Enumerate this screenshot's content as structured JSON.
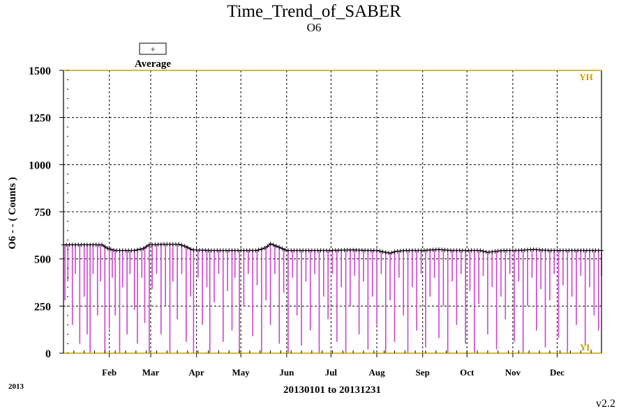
{
  "chart_data": {
    "type": "line",
    "title": "Time_Trend_of_SABER",
    "subtitle": "O6",
    "ylabel": "O6  - - ( Counts )",
    "xlabel": "20130101 to 20131231",
    "year_label": "2013",
    "version": "v2.2",
    "ylim": [
      0,
      1500
    ],
    "yticks": [
      0,
      250,
      500,
      750,
      1000,
      1250,
      1500
    ],
    "ytick_labels": [
      "0",
      "250",
      "500",
      "750",
      "1000",
      "1250",
      "1500"
    ],
    "x_range": [
      "2013-01-01",
      "2013-12-31"
    ],
    "month_ticks": [
      {
        "date": "2013-02-01",
        "label": "Feb"
      },
      {
        "date": "2013-03-01",
        "label": "Mar"
      },
      {
        "date": "2013-04-01",
        "label": "Apr"
      },
      {
        "date": "2013-05-01",
        "label": "May"
      },
      {
        "date": "2013-06-01",
        "label": "Jun"
      },
      {
        "date": "2013-07-01",
        "label": "Jul"
      },
      {
        "date": "2013-08-01",
        "label": "Aug"
      },
      {
        "date": "2013-09-01",
        "label": "Sep"
      },
      {
        "date": "2013-10-01",
        "label": "Oct"
      },
      {
        "date": "2013-11-01",
        "label": "Nov"
      },
      {
        "date": "2013-12-01",
        "label": "Dec"
      }
    ],
    "limit_high": {
      "label": "YH",
      "value": 1500,
      "color": "#c8a000"
    },
    "limit_low": {
      "label": "YL",
      "value": 0,
      "color": "#c8a000"
    },
    "grid": true,
    "legend": {
      "position": "top-left",
      "entries": [
        {
          "symbol": "+",
          "label": "Average"
        }
      ]
    },
    "average_series": {
      "name": "Average",
      "color": "#000000",
      "points": [
        [
          "2013-01-01",
          575
        ],
        [
          "2013-01-10",
          575
        ],
        [
          "2013-01-20",
          575
        ],
        [
          "2013-01-27",
          575
        ],
        [
          "2013-01-31",
          555
        ],
        [
          "2013-02-05",
          545
        ],
        [
          "2013-02-12",
          545
        ],
        [
          "2013-02-18",
          545
        ],
        [
          "2013-02-24",
          555
        ],
        [
          "2013-02-28",
          575
        ],
        [
          "2013-03-10",
          578
        ],
        [
          "2013-03-20",
          578
        ],
        [
          "2013-03-25",
          565
        ],
        [
          "2013-03-29",
          548
        ],
        [
          "2013-04-10",
          545
        ],
        [
          "2013-04-25",
          545
        ],
        [
          "2013-05-05",
          545
        ],
        [
          "2013-05-12",
          545
        ],
        [
          "2013-05-18",
          560
        ],
        [
          "2013-05-21",
          580
        ],
        [
          "2013-05-26",
          565
        ],
        [
          "2013-06-01",
          545
        ],
        [
          "2013-06-15",
          545
        ],
        [
          "2013-07-01",
          545
        ],
        [
          "2013-07-15",
          548
        ],
        [
          "2013-07-25",
          545
        ],
        [
          "2013-08-01",
          545
        ],
        [
          "2013-08-05",
          538
        ],
        [
          "2013-08-10",
          530
        ],
        [
          "2013-08-14",
          540
        ],
        [
          "2013-08-20",
          545
        ],
        [
          "2013-09-01",
          545
        ],
        [
          "2013-09-12",
          550
        ],
        [
          "2013-09-20",
          545
        ],
        [
          "2013-10-01",
          545
        ],
        [
          "2013-10-10",
          545
        ],
        [
          "2013-10-15",
          535
        ],
        [
          "2013-10-20",
          540
        ],
        [
          "2013-10-25",
          545
        ],
        [
          "2013-11-05",
          545
        ],
        [
          "2013-11-15",
          550
        ],
        [
          "2013-11-25",
          545
        ],
        [
          "2013-12-10",
          545
        ],
        [
          "2013-12-31",
          545
        ]
      ]
    },
    "min_series": {
      "name": "",
      "color": "#cc44cc",
      "points": [
        [
          "2013-01-02",
          280
        ],
        [
          "2013-01-04",
          380
        ],
        [
          "2013-01-07",
          150
        ],
        [
          "2013-01-09",
          420
        ],
        [
          "2013-01-12",
          50
        ],
        [
          "2013-01-15",
          300
        ],
        [
          "2013-01-17",
          100
        ],
        [
          "2013-01-19",
          0
        ],
        [
          "2013-01-21",
          420
        ],
        [
          "2013-01-24",
          200
        ],
        [
          "2013-01-26",
          380
        ],
        [
          "2013-01-29",
          0
        ],
        [
          "2013-02-01",
          130
        ],
        [
          "2013-02-03",
          400
        ],
        [
          "2013-02-05",
          200
        ],
        [
          "2013-02-08",
          0
        ],
        [
          "2013-02-10",
          350
        ],
        [
          "2013-02-13",
          100
        ],
        [
          "2013-02-15",
          420
        ],
        [
          "2013-02-18",
          230
        ],
        [
          "2013-02-20",
          50
        ],
        [
          "2013-02-23",
          400
        ],
        [
          "2013-02-25",
          160
        ],
        [
          "2013-02-28",
          0
        ],
        [
          "2013-03-02",
          340
        ],
        [
          "2013-03-05",
          420
        ],
        [
          "2013-03-08",
          100
        ],
        [
          "2013-03-11",
          250
        ],
        [
          "2013-03-14",
          0
        ],
        [
          "2013-03-16",
          380
        ],
        [
          "2013-03-19",
          180
        ],
        [
          "2013-03-22",
          420
        ],
        [
          "2013-03-25",
          60
        ],
        [
          "2013-03-28",
          300
        ],
        [
          "2013-03-30",
          0
        ],
        [
          "2013-04-02",
          400
        ],
        [
          "2013-04-05",
          150
        ],
        [
          "2013-04-08",
          350
        ],
        [
          "2013-04-10",
          0
        ],
        [
          "2013-04-13",
          270
        ],
        [
          "2013-04-16",
          420
        ],
        [
          "2013-04-19",
          60
        ],
        [
          "2013-04-22",
          330
        ],
        [
          "2013-04-25",
          120
        ],
        [
          "2013-04-27",
          400
        ],
        [
          "2013-04-30",
          0
        ],
        [
          "2013-05-03",
          250
        ],
        [
          "2013-05-06",
          420
        ],
        [
          "2013-05-09",
          90
        ],
        [
          "2013-05-12",
          360
        ],
        [
          "2013-05-15",
          0
        ],
        [
          "2013-05-18",
          280
        ],
        [
          "2013-05-21",
          150
        ],
        [
          "2013-05-24",
          420
        ],
        [
          "2013-05-27",
          50
        ],
        [
          "2013-05-30",
          320
        ],
        [
          "2013-06-02",
          0
        ],
        [
          "2013-06-05",
          400
        ],
        [
          "2013-06-08",
          200
        ],
        [
          "2013-06-11",
          40
        ],
        [
          "2013-06-14",
          380
        ],
        [
          "2013-06-17",
          120
        ],
        [
          "2013-06-20",
          420
        ],
        [
          "2013-06-23",
          0
        ],
        [
          "2013-06-26",
          300
        ],
        [
          "2013-06-29",
          180
        ],
        [
          "2013-07-02",
          420
        ],
        [
          "2013-07-05",
          60
        ],
        [
          "2013-07-08",
          350
        ],
        [
          "2013-07-11",
          0
        ],
        [
          "2013-07-14",
          250
        ],
        [
          "2013-07-17",
          410
        ],
        [
          "2013-07-20",
          100
        ],
        [
          "2013-07-23",
          380
        ],
        [
          "2013-07-26",
          20
        ],
        [
          "2013-07-29",
          300
        ],
        [
          "2013-08-01",
          150
        ],
        [
          "2013-08-04",
          420
        ],
        [
          "2013-08-07",
          0
        ],
        [
          "2013-08-10",
          280
        ],
        [
          "2013-08-13",
          60
        ],
        [
          "2013-08-16",
          400
        ],
        [
          "2013-08-19",
          200
        ],
        [
          "2013-08-22",
          0
        ],
        [
          "2013-08-25",
          350
        ],
        [
          "2013-08-28",
          120
        ],
        [
          "2013-08-31",
          420
        ],
        [
          "2013-09-03",
          30
        ],
        [
          "2013-09-06",
          300
        ],
        [
          "2013-09-09",
          400
        ],
        [
          "2013-09-12",
          80
        ],
        [
          "2013-09-15",
          250
        ],
        [
          "2013-09-18",
          0
        ],
        [
          "2013-09-21",
          380
        ],
        [
          "2013-09-24",
          150
        ],
        [
          "2013-09-27",
          420
        ],
        [
          "2013-09-30",
          50
        ],
        [
          "2013-10-03",
          330
        ],
        [
          "2013-10-06",
          0
        ],
        [
          "2013-10-09",
          260
        ],
        [
          "2013-10-12",
          410
        ],
        [
          "2013-10-15",
          100
        ],
        [
          "2013-10-18",
          350
        ],
        [
          "2013-10-21",
          20
        ],
        [
          "2013-10-24",
          300
        ],
        [
          "2013-10-27",
          180
        ],
        [
          "2013-10-30",
          420
        ],
        [
          "2013-11-02",
          60
        ],
        [
          "2013-11-05",
          380
        ],
        [
          "2013-11-08",
          0
        ],
        [
          "2013-11-11",
          250
        ],
        [
          "2013-11-14",
          400
        ],
        [
          "2013-11-17",
          120
        ],
        [
          "2013-11-20",
          340
        ],
        [
          "2013-11-23",
          30
        ],
        [
          "2013-11-26",
          280
        ],
        [
          "2013-11-29",
          420
        ],
        [
          "2013-12-02",
          80
        ],
        [
          "2013-12-05",
          360
        ],
        [
          "2013-12-08",
          0
        ],
        [
          "2013-12-11",
          300
        ],
        [
          "2013-12-14",
          150
        ],
        [
          "2013-12-17",
          410
        ],
        [
          "2013-12-20",
          40
        ],
        [
          "2013-12-23",
          350
        ],
        [
          "2013-12-26",
          200
        ],
        [
          "2013-12-29",
          120
        ],
        [
          "2013-12-31",
          410
        ]
      ]
    }
  }
}
